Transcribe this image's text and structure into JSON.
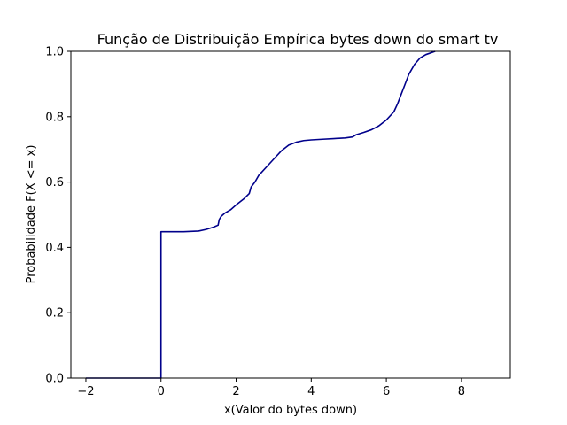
{
  "chart_data": {
    "type": "line",
    "title": "Função de Distribuição Empírica bytes down do smart tv",
    "xlabel": "x(Valor do bytes down)",
    "ylabel": "Probabilidade F(X <= x)",
    "xlim": [
      -2.4,
      9.3
    ],
    "ylim": [
      0,
      1.0
    ],
    "xticks": [
      -2,
      0,
      2,
      4,
      6,
      8
    ],
    "xtick_labels": [
      "−2",
      "0",
      "2",
      "4",
      "6",
      "8"
    ],
    "yticks": [
      0.0,
      0.2,
      0.4,
      0.6,
      0.8,
      1.0
    ],
    "ytick_labels": [
      "0.0",
      "0.2",
      "0.4",
      "0.6",
      "0.8",
      "1.0"
    ],
    "grid": false,
    "series": [
      {
        "color": "#00008b",
        "points": [
          [
            -2.0,
            0.0
          ],
          [
            0.0,
            0.0
          ],
          [
            0.0,
            0.448
          ],
          [
            0.6,
            0.448
          ],
          [
            1.0,
            0.45
          ],
          [
            1.2,
            0.455
          ],
          [
            1.4,
            0.462
          ],
          [
            1.52,
            0.468
          ],
          [
            1.55,
            0.485
          ],
          [
            1.6,
            0.495
          ],
          [
            1.7,
            0.505
          ],
          [
            1.85,
            0.515
          ],
          [
            2.0,
            0.53
          ],
          [
            2.2,
            0.548
          ],
          [
            2.35,
            0.565
          ],
          [
            2.4,
            0.585
          ],
          [
            2.5,
            0.6
          ],
          [
            2.6,
            0.62
          ],
          [
            2.8,
            0.645
          ],
          [
            3.0,
            0.67
          ],
          [
            3.2,
            0.695
          ],
          [
            3.4,
            0.713
          ],
          [
            3.6,
            0.722
          ],
          [
            3.8,
            0.727
          ],
          [
            4.0,
            0.729
          ],
          [
            4.3,
            0.731
          ],
          [
            4.6,
            0.733
          ],
          [
            4.9,
            0.735
          ],
          [
            5.1,
            0.738
          ],
          [
            5.2,
            0.745
          ],
          [
            5.4,
            0.752
          ],
          [
            5.6,
            0.76
          ],
          [
            5.8,
            0.772
          ],
          [
            6.0,
            0.79
          ],
          [
            6.2,
            0.815
          ],
          [
            6.3,
            0.84
          ],
          [
            6.4,
            0.87
          ],
          [
            6.5,
            0.9
          ],
          [
            6.6,
            0.93
          ],
          [
            6.75,
            0.96
          ],
          [
            6.9,
            0.98
          ],
          [
            7.05,
            0.99
          ],
          [
            7.3,
            1.0
          ]
        ]
      }
    ]
  }
}
